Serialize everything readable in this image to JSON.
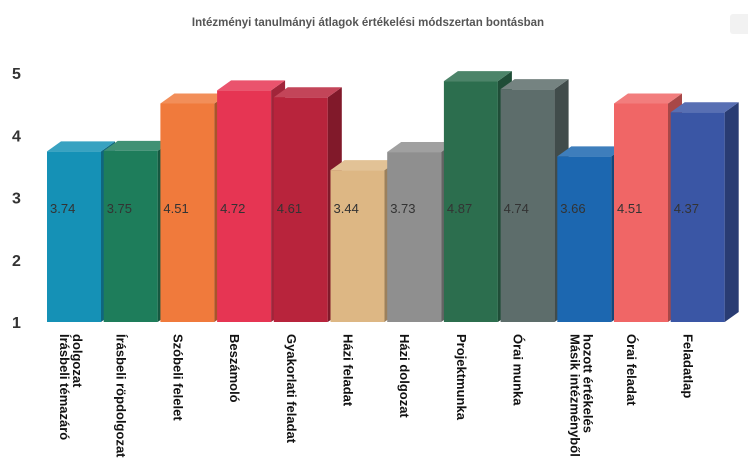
{
  "chart_data": {
    "type": "bar",
    "title": "Intézményi tanulmányi átlagok értékelési módszertan bontásban",
    "xlabel": "",
    "ylabel": "",
    "ylim": [
      1,
      5
    ],
    "yticks": [
      "1",
      "2",
      "3",
      "4",
      "5"
    ],
    "grid": false,
    "legend": "none",
    "style": "3d-columns",
    "categories": [
      [
        "Írásbeli témazáró",
        "dolgozat"
      ],
      [
        "Írásbeli röpdolgozat"
      ],
      [
        "Szóbeli felelet"
      ],
      [
        "Beszámoló"
      ],
      [
        "Gyakorlati feladat"
      ],
      [
        "Házi feladat"
      ],
      [
        "Házi dolgozat"
      ],
      [
        "Projektmunka"
      ],
      [
        "Órai munka"
      ],
      [
        "Másik intézményből",
        "hozott értékelés"
      ],
      [
        "Órai feladat"
      ],
      [
        "Feladatlap"
      ]
    ],
    "values": [
      3.74,
      3.75,
      4.51,
      4.72,
      4.61,
      3.44,
      3.73,
      4.87,
      4.74,
      3.66,
      4.51,
      4.37
    ],
    "data_labels": [
      "3.74",
      "3.75",
      "4.51",
      "4.72",
      "4.61",
      "3.44",
      "3.73",
      "4.87",
      "4.74",
      "3.66",
      "4.51",
      "4.37"
    ],
    "colors": [
      "#1591b6",
      "#1e7d5b",
      "#f07a3c",
      "#e63553",
      "#b8243c",
      "#ddb784",
      "#8f8f8f",
      "#2c6e4e",
      "#5d6d6b",
      "#1c67b0",
      "#f06666",
      "#3a56a5"
    ]
  }
}
